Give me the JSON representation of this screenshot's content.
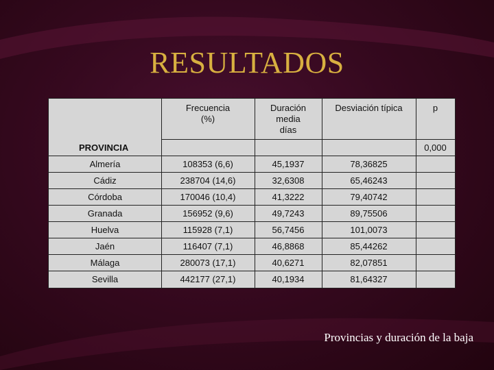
{
  "title": "RESULTADOS",
  "table": {
    "headers": {
      "frecuencia": [
        "Frecuencia",
        "(%)"
      ],
      "duracion": [
        "Duración",
        "media",
        "días"
      ],
      "desviacion": "Desviación típica",
      "p": "p"
    },
    "provincia_label": "PROVINCIA",
    "p_value": "0,000",
    "rows": [
      {
        "provincia": "Almería",
        "frecuencia": "108353 (6,6)",
        "duracion": "45,1937",
        "desviacion": "78,36825"
      },
      {
        "provincia": "Cádiz",
        "frecuencia": "238704 (14,6)",
        "duracion": "32,6308",
        "desviacion": "65,46243"
      },
      {
        "provincia": "Córdoba",
        "frecuencia": "170046 (10,4)",
        "duracion": "41,3222",
        "desviacion": "79,40742"
      },
      {
        "provincia": "Granada",
        "frecuencia": "156952 (9,6)",
        "duracion": "49,7243",
        "desviacion": "89,75506"
      },
      {
        "provincia": "Huelva",
        "frecuencia": "115928 (7,1)",
        "duracion": "56,7456",
        "desviacion": "101,0073"
      },
      {
        "provincia": "Jaén",
        "frecuencia": "116407 (7,1)",
        "duracion": "46,8868",
        "desviacion": "85,44262"
      },
      {
        "provincia": "Málaga",
        "frecuencia": "280073 (17,1)",
        "duracion": "40,6271",
        "desviacion": "82,07851"
      },
      {
        "provincia": "Sevilla",
        "frecuencia": "442177 (27,1)",
        "duracion": "40,1934",
        "desviacion": "81,64327"
      }
    ]
  },
  "caption": "Provincias y duración de la baja"
}
